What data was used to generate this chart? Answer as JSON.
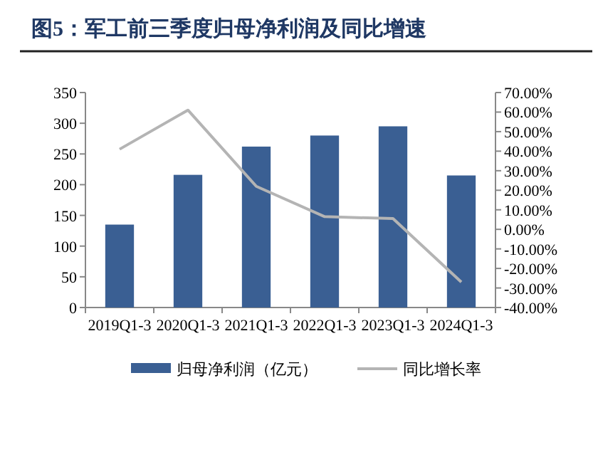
{
  "chart_data": {
    "type": "bar",
    "title": "图5：军工前三季度归母净利润及同比增速",
    "categories": [
      "2019Q1-3",
      "2020Q1-3",
      "2021Q1-3",
      "2022Q1-3",
      "2023Q1-3",
      "2024Q1-3"
    ],
    "series": [
      {
        "name": "归母净利润（亿元）",
        "color": "#3a5f93",
        "values": [
          135,
          216,
          262,
          280,
          295,
          215
        ]
      },
      {
        "name": "同比增长率",
        "type": "line",
        "axis": "y2",
        "color": "#b4b4b4",
        "values": [
          41,
          61,
          22,
          6.5,
          5.5,
          -27
        ]
      }
    ],
    "ylim": [
      0,
      350
    ],
    "yticks": [
      0,
      50,
      100,
      150,
      200,
      250,
      300,
      350
    ],
    "y2lim": [
      -40,
      70
    ],
    "y2ticks": [
      {
        "value": 70,
        "label": "70.00%"
      },
      {
        "value": 60,
        "label": "60.00%"
      },
      {
        "value": 50,
        "label": "50.00%"
      },
      {
        "value": 40,
        "label": "40.00%"
      },
      {
        "value": 30,
        "label": "30.00%"
      },
      {
        "value": 20,
        "label": "20.00%"
      },
      {
        "value": 10,
        "label": "10.00%"
      },
      {
        "value": 0,
        "label": "0.00%"
      },
      {
        "value": -10,
        "label": "-10.00%"
      },
      {
        "value": -20,
        "label": "-20.00%"
      },
      {
        "value": -30,
        "label": "-30.00%"
      },
      {
        "value": -40,
        "label": "-40.00%"
      }
    ],
    "grid": false,
    "legend": "bottom"
  }
}
